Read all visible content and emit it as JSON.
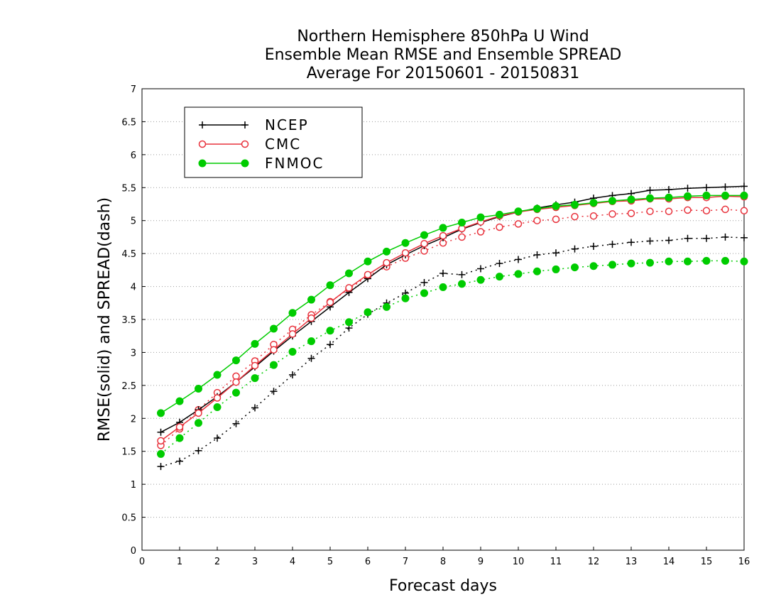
{
  "chart_data": {
    "type": "line",
    "title": [
      "Northern Hemisphere 850hPa U Wind",
      "Ensemble Mean RMSE and Ensemble SPREAD",
      "Average For 20150601 - 20150831"
    ],
    "xlabel": "Forecast days",
    "ylabel": "RMSE(solid) and SPREAD(dash)",
    "xlim": [
      0,
      16
    ],
    "ylim": [
      0,
      7
    ],
    "x_ticks": [
      "0",
      "1",
      "2",
      "3",
      "4",
      "5",
      "6",
      "7",
      "8",
      "9",
      "10",
      "11",
      "12",
      "13",
      "14",
      "15",
      "16"
    ],
    "y_ticks": [
      "0",
      "0.5",
      "1",
      "1.5",
      "2",
      "2.5",
      "3",
      "3.5",
      "4",
      "4.5",
      "5",
      "5.5",
      "6",
      "6.5",
      "7"
    ],
    "grid": true,
    "legend_position": "top-left",
    "x": [
      0.5,
      1,
      1.5,
      2,
      2.5,
      3,
      3.5,
      4,
      4.5,
      5,
      5.5,
      6,
      6.5,
      7,
      7.5,
      8,
      8.5,
      9,
      9.5,
      10,
      10.5,
      11,
      11.5,
      12,
      12.5,
      13,
      13.5,
      14,
      14.5,
      15,
      15.5,
      16
    ],
    "series": [
      {
        "name": "NCEP",
        "style": "solid",
        "marker": "plus",
        "color": "#000000",
        "values": [
          1.79,
          1.94,
          2.13,
          2.33,
          2.55,
          2.78,
          3.02,
          3.25,
          3.47,
          3.69,
          3.91,
          4.12,
          4.33,
          4.48,
          4.62,
          4.74,
          4.87,
          4.97,
          5.06,
          5.13,
          5.19,
          5.24,
          5.28,
          5.34,
          5.38,
          5.41,
          5.46,
          5.47,
          5.49,
          5.5,
          5.51,
          5.52
        ]
      },
      {
        "name": "CMC",
        "style": "solid",
        "marker": "open-circle",
        "color": "#e8323c",
        "values": [
          1.66,
          1.87,
          2.08,
          2.31,
          2.55,
          2.8,
          3.04,
          3.28,
          3.52,
          3.76,
          3.98,
          4.18,
          4.36,
          4.51,
          4.65,
          4.77,
          4.88,
          4.98,
          5.07,
          5.13,
          5.17,
          5.2,
          5.23,
          5.26,
          5.29,
          5.3,
          5.33,
          5.33,
          5.35,
          5.35,
          5.37,
          5.36
        ]
      },
      {
        "name": "FNMOC",
        "style": "solid",
        "marker": "filled-circle",
        "color": "#00cc00",
        "values": [
          2.08,
          2.26,
          2.45,
          2.66,
          2.88,
          3.13,
          3.36,
          3.6,
          3.8,
          4.02,
          4.2,
          4.38,
          4.53,
          4.66,
          4.78,
          4.89,
          4.97,
          5.05,
          5.09,
          5.14,
          5.18,
          5.22,
          5.24,
          5.27,
          5.3,
          5.32,
          5.34,
          5.35,
          5.37,
          5.38,
          5.38,
          5.38
        ]
      },
      {
        "name": "NCEP",
        "style": "dash",
        "marker": "plus",
        "color": "#000000",
        "values": [
          1.27,
          1.35,
          1.51,
          1.7,
          1.92,
          2.16,
          2.41,
          2.66,
          2.91,
          3.12,
          3.37,
          3.58,
          3.75,
          3.9,
          4.06,
          4.2,
          4.18,
          4.27,
          4.35,
          4.41,
          4.48,
          4.51,
          4.57,
          4.61,
          4.64,
          4.67,
          4.69,
          4.7,
          4.73,
          4.73,
          4.75,
          4.74
        ]
      },
      {
        "name": "CMC",
        "style": "dash",
        "marker": "open-circle",
        "color": "#e8323c",
        "values": [
          1.59,
          1.84,
          2.13,
          2.39,
          2.64,
          2.87,
          3.12,
          3.35,
          3.57,
          3.77,
          3.96,
          4.16,
          4.3,
          4.43,
          4.54,
          4.66,
          4.75,
          4.83,
          4.9,
          4.95,
          5.0,
          5.02,
          5.06,
          5.07,
          5.1,
          5.11,
          5.14,
          5.14,
          5.16,
          5.15,
          5.17,
          5.15
        ]
      },
      {
        "name": "FNMOC",
        "style": "dash",
        "marker": "filled-circle",
        "color": "#00cc00",
        "values": [
          1.46,
          1.7,
          1.93,
          2.17,
          2.39,
          2.61,
          2.81,
          3.01,
          3.17,
          3.33,
          3.46,
          3.61,
          3.69,
          3.82,
          3.9,
          3.99,
          4.04,
          4.1,
          4.15,
          4.19,
          4.23,
          4.26,
          4.29,
          4.31,
          4.33,
          4.35,
          4.36,
          4.38,
          4.38,
          4.39,
          4.39,
          4.38
        ]
      }
    ],
    "legend": [
      {
        "label": "NCEP",
        "marker": "plus",
        "color": "#000000"
      },
      {
        "label": "CMC",
        "marker": "open-circle",
        "color": "#e8323c"
      },
      {
        "label": "FNMOC",
        "marker": "filled-circle",
        "color": "#00cc00"
      }
    ]
  }
}
